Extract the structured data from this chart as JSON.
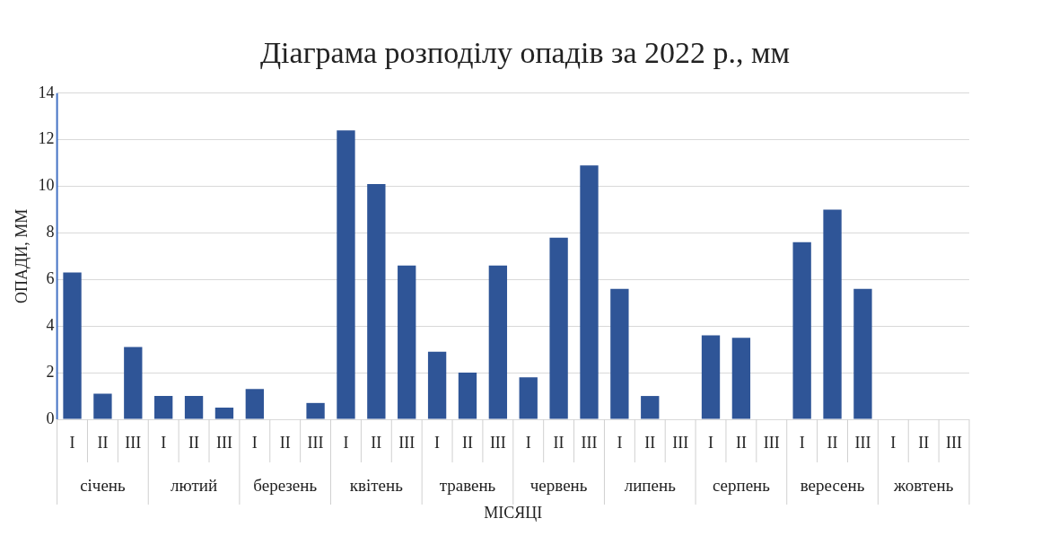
{
  "chart_data": {
    "type": "bar",
    "title": "Діаграма розподілу опадів за 2022 р., мм",
    "xlabel": "МІСЯЦІ",
    "ylabel": "ОПАДИ, ММ",
    "categories": [
      "I",
      "II",
      "III",
      "I",
      "II",
      "III",
      "I",
      "II",
      "III",
      "I",
      "II",
      "III",
      "I",
      "II",
      "III",
      "I",
      "II",
      "III",
      "I",
      "II",
      "III",
      "I",
      "II",
      "III",
      "I",
      "II",
      "III",
      "I",
      "II",
      "III"
    ],
    "values": [
      6.3,
      1.1,
      3.1,
      1.0,
      1.0,
      0.5,
      1.3,
      0,
      0.7,
      12.4,
      10.1,
      6.6,
      2.9,
      2.0,
      6.6,
      1.8,
      7.8,
      10.9,
      5.6,
      1.0,
      0,
      3.6,
      3.5,
      0,
      7.6,
      9.0,
      5.6,
      0,
      0,
      0
    ],
    "color": "#2f5597",
    "annotations": [
      "січень",
      "лютий",
      "березень",
      "квітень",
      "травень",
      "червень",
      "липень",
      "серпень",
      "вересень",
      "жовтень"
    ],
    "ylim": [
      0,
      14
    ],
    "yticks": [
      0,
      2,
      4,
      6,
      8,
      10,
      12,
      14
    ],
    "grid": "y",
    "legend": false
  }
}
